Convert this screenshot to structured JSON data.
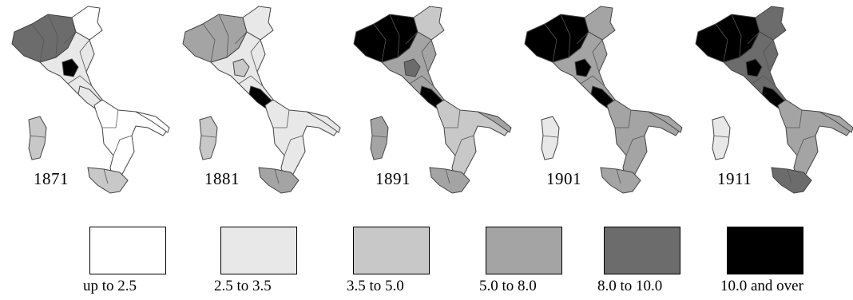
{
  "maps": [
    {
      "year": "1871",
      "shades": {
        "nw": 4,
        "ne": 0,
        "center": 1,
        "focus": 5,
        "rome": 1,
        "south": 0,
        "heel": 0,
        "sicily": 2,
        "sardinia": 2
      }
    },
    {
      "year": "1881",
      "shades": {
        "nw": 3,
        "ne": 1,
        "center": 1,
        "focus": 2,
        "rome": 5,
        "south": 1,
        "heel": 1,
        "sicily": 3,
        "sardinia": 2
      }
    },
    {
      "year": "1891",
      "shades": {
        "nw": 5,
        "ne": 2,
        "center": 3,
        "focus": 4,
        "rome": 5,
        "south": 2,
        "heel": 3,
        "sicily": 3,
        "sardinia": 3
      }
    },
    {
      "year": "1901",
      "shades": {
        "nw": 5,
        "ne": 3,
        "center": 3,
        "focus": 5,
        "rome": 5,
        "south": 3,
        "heel": 3,
        "sicily": 3,
        "sardinia": 1
      }
    },
    {
      "year": "1911",
      "shades": {
        "nw": 5,
        "ne": 4,
        "center": 4,
        "focus": 5,
        "rome": 5,
        "south": 3,
        "heel": 3,
        "sicily": 4,
        "sardinia": 1
      }
    }
  ],
  "legend": [
    {
      "label": "up to 2.5",
      "color": "#ffffff"
    },
    {
      "label": "2.5 to 3.5",
      "color": "#e8e8e8"
    },
    {
      "label": "3.5  to 5.0",
      "color": "#c8c8c8"
    },
    {
      "label": "5.0 to 8.0",
      "color": "#a4a4a4"
    },
    {
      "label": "8.0 to 10.0",
      "color": "#6c6c6c"
    },
    {
      "label": "10.0 and over",
      "color": "#000000"
    }
  ]
}
